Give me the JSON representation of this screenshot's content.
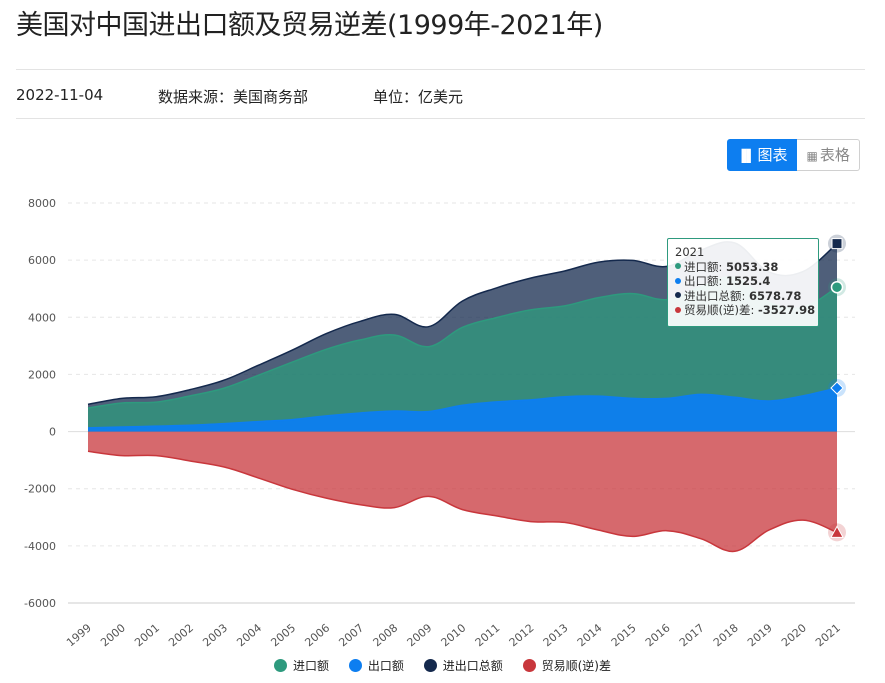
{
  "page": {
    "title": "美国对中国进出口额及贸易逆差(1999年-2021年)",
    "date": "2022-11-04",
    "source": "数据来源：美国商务部",
    "unit": "单位：亿美元"
  },
  "toggle": {
    "chart_label": "图表",
    "table_label": "表格",
    "chart_icon": "bar-chart-icon",
    "table_icon": "grid-icon"
  },
  "colors": {
    "import": "#2e9a7e",
    "export": "#0d7ef0",
    "total": "#14294d",
    "deficit": "#c8373c",
    "accent": "#0d7ef0"
  },
  "tooltip": {
    "year": "2021",
    "rows": [
      {
        "label": "进口额: ",
        "value": "5053.38",
        "color": "#2e9a7e"
      },
      {
        "label": "出口额: ",
        "value": "1525.4",
        "color": "#0d7ef0"
      },
      {
        "label": "进出口总额: ",
        "value": "6578.78",
        "color": "#14294d"
      },
      {
        "label": "贸易顺(逆)差: ",
        "value": "-3527.98",
        "color": "#c8373c"
      }
    ]
  },
  "chart_data": {
    "type": "area",
    "x": [
      "1999",
      "2000",
      "2001",
      "2002",
      "2003",
      "2004",
      "2005",
      "2006",
      "2007",
      "2008",
      "2009",
      "2010",
      "2011",
      "2012",
      "2013",
      "2014",
      "2015",
      "2016",
      "2017",
      "2018",
      "2019",
      "2020",
      "2021"
    ],
    "y_ticks": [
      8000,
      6000,
      4000,
      2000,
      0,
      -2000,
      -4000,
      -6000
    ],
    "ylim": [
      -6000,
      8000
    ],
    "grid": true,
    "legend_position": "bottom",
    "series": [
      {
        "name": "进口额",
        "color": "#2e9a7e",
        "values": [
          820,
          1000,
          1030,
          1250,
          1520,
          1970,
          2430,
          2880,
          3210,
          3380,
          2970,
          3650,
          3990,
          4260,
          4400,
          4690,
          4830,
          4620,
          5050,
          5400,
          4520,
          4350,
          5053.38
        ]
      },
      {
        "name": "出口额",
        "color": "#0d7ef0",
        "values": [
          130,
          160,
          190,
          220,
          280,
          350,
          420,
          550,
          650,
          720,
          700,
          920,
          1040,
          1110,
          1220,
          1240,
          1160,
          1160,
          1300,
          1200,
          1070,
          1250,
          1525.4
        ]
      },
      {
        "name": "进出口总额",
        "color": "#14294d",
        "values": [
          950,
          1160,
          1220,
          1470,
          1800,
          2320,
          2850,
          3430,
          3860,
          4100,
          3670,
          4570,
          5030,
          5370,
          5620,
          5930,
          5990,
          5780,
          6350,
          6600,
          5590,
          5600,
          6578.78
        ]
      },
      {
        "name": "贸易顺(逆)差",
        "color": "#c8373c",
        "values": [
          -690,
          -840,
          -840,
          -1030,
          -1240,
          -1620,
          -2020,
          -2330,
          -2560,
          -2660,
          -2270,
          -2730,
          -2950,
          -3150,
          -3180,
          -3450,
          -3670,
          -3470,
          -3750,
          -4190,
          -3450,
          -3100,
          -3527.98
        ]
      }
    ]
  }
}
